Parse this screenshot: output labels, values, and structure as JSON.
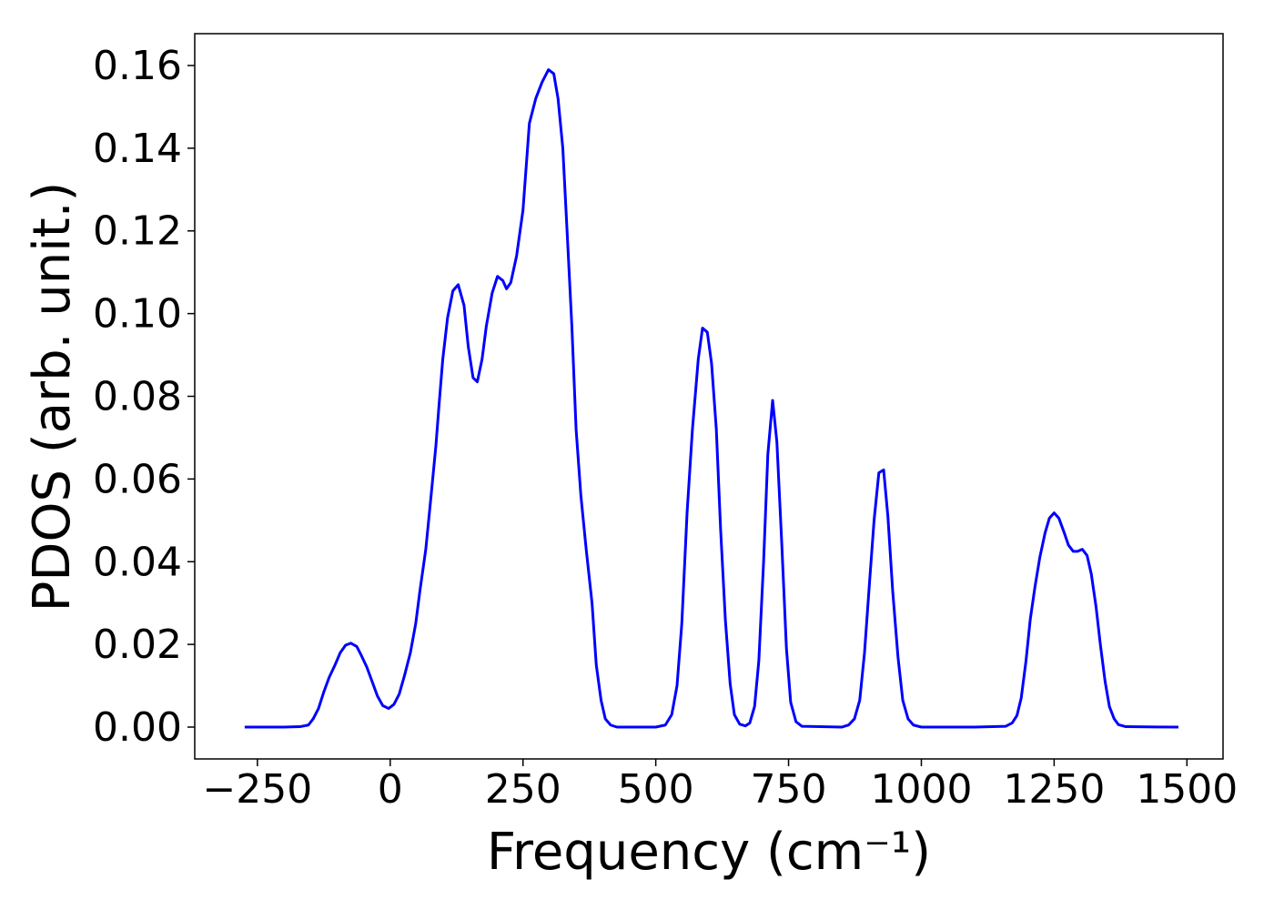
{
  "chart_data": {
    "type": "line",
    "xlabel": "Frequency (cm⁻¹)",
    "ylabel": "PDOS (arb. unit.)",
    "x": [
      -274,
      -200,
      -170,
      -154,
      -145,
      -135,
      -125,
      -115,
      -104,
      -94,
      -84,
      -74,
      -63,
      -55,
      -44,
      -34,
      -24,
      -14,
      -3,
      7,
      17,
      27,
      38,
      48,
      56,
      67,
      77,
      86,
      92,
      99,
      108,
      118,
      128,
      139,
      147,
      156,
      164,
      173,
      181,
      192,
      202,
      212,
      219,
      227,
      238,
      250,
      262,
      274,
      286,
      298,
      308,
      316,
      325,
      333,
      342,
      350,
      359,
      369,
      380,
      388,
      397,
      405,
      415,
      427,
      500,
      518,
      530,
      540,
      549,
      559,
      569,
      580,
      588,
      597,
      605,
      614,
      622,
      631,
      640,
      648,
      658,
      669,
      677,
      686,
      694,
      703,
      711,
      720,
      728,
      737,
      746,
      754,
      764,
      775,
      850,
      863,
      874,
      884,
      893,
      903,
      911,
      920,
      929,
      937,
      946,
      956,
      965,
      975,
      985,
      1000,
      1100,
      1159,
      1171,
      1180,
      1188,
      1197,
      1205,
      1214,
      1223,
      1233,
      1241,
      1250,
      1259,
      1269,
      1277,
      1286,
      1294,
      1303,
      1312,
      1320,
      1329,
      1337,
      1346,
      1354,
      1363,
      1371,
      1385,
      1484
    ],
    "values": [
      0,
      0,
      0.0001,
      0.0005,
      0.002,
      0.0045,
      0.0085,
      0.012,
      0.015,
      0.018,
      0.0198,
      0.0203,
      0.0195,
      0.0175,
      0.0145,
      0.011,
      0.0075,
      0.0052,
      0.0045,
      0.0055,
      0.008,
      0.0125,
      0.018,
      0.025,
      0.033,
      0.043,
      0.056,
      0.068,
      0.078,
      0.089,
      0.099,
      0.1055,
      0.107,
      0.102,
      0.092,
      0.0845,
      0.0835,
      0.089,
      0.097,
      0.105,
      0.109,
      0.108,
      0.106,
      0.1075,
      0.114,
      0.125,
      0.146,
      0.152,
      0.156,
      0.159,
      0.158,
      0.152,
      0.14,
      0.12,
      0.097,
      0.072,
      0.056,
      0.043,
      0.03,
      0.015,
      0.0065,
      0.002,
      0.0005,
      0,
      0,
      0.0005,
      0.003,
      0.01,
      0.025,
      0.052,
      0.072,
      0.089,
      0.0965,
      0.0955,
      0.088,
      0.072,
      0.048,
      0.026,
      0.0105,
      0.003,
      0.0007,
      0.0003,
      0.001,
      0.005,
      0.016,
      0.04,
      0.066,
      0.079,
      0.069,
      0.045,
      0.019,
      0.006,
      0.0013,
      0.0002,
      0,
      0.0005,
      0.002,
      0.0065,
      0.018,
      0.036,
      0.05,
      0.0615,
      0.0622,
      0.051,
      0.033,
      0.017,
      0.0065,
      0.002,
      0.0005,
      0,
      0,
      0.0002,
      0.001,
      0.0028,
      0.007,
      0.016,
      0.026,
      0.034,
      0.041,
      0.047,
      0.0505,
      0.0518,
      0.0505,
      0.047,
      0.044,
      0.0425,
      0.0425,
      0.043,
      0.0415,
      0.037,
      0.029,
      0.02,
      0.011,
      0.005,
      0.002,
      0.0006,
      0.0001,
      0
    ],
    "color": "#0000ff",
    "xlim": [
      -368,
      1568
    ],
    "ylim": [
      -0.0077,
      0.1677
    ],
    "xticks": [
      {
        "value": -250,
        "label": "−250"
      },
      0,
      250,
      500,
      750,
      1000,
      1250,
      1500
    ],
    "yticks": [
      {
        "value": 0,
        "label": "0.00"
      },
      {
        "value": 0.02,
        "label": "0.02"
      },
      {
        "value": 0.04,
        "label": "0.04"
      },
      {
        "value": 0.06,
        "label": "0.06"
      },
      {
        "value": 0.08,
        "label": "0.08"
      },
      {
        "value": 0.1,
        "label": "0.10"
      },
      {
        "value": 0.12,
        "label": "0.12"
      },
      {
        "value": 0.14,
        "label": "0.14"
      },
      {
        "value": 0.16,
        "label": "0.16"
      }
    ]
  }
}
